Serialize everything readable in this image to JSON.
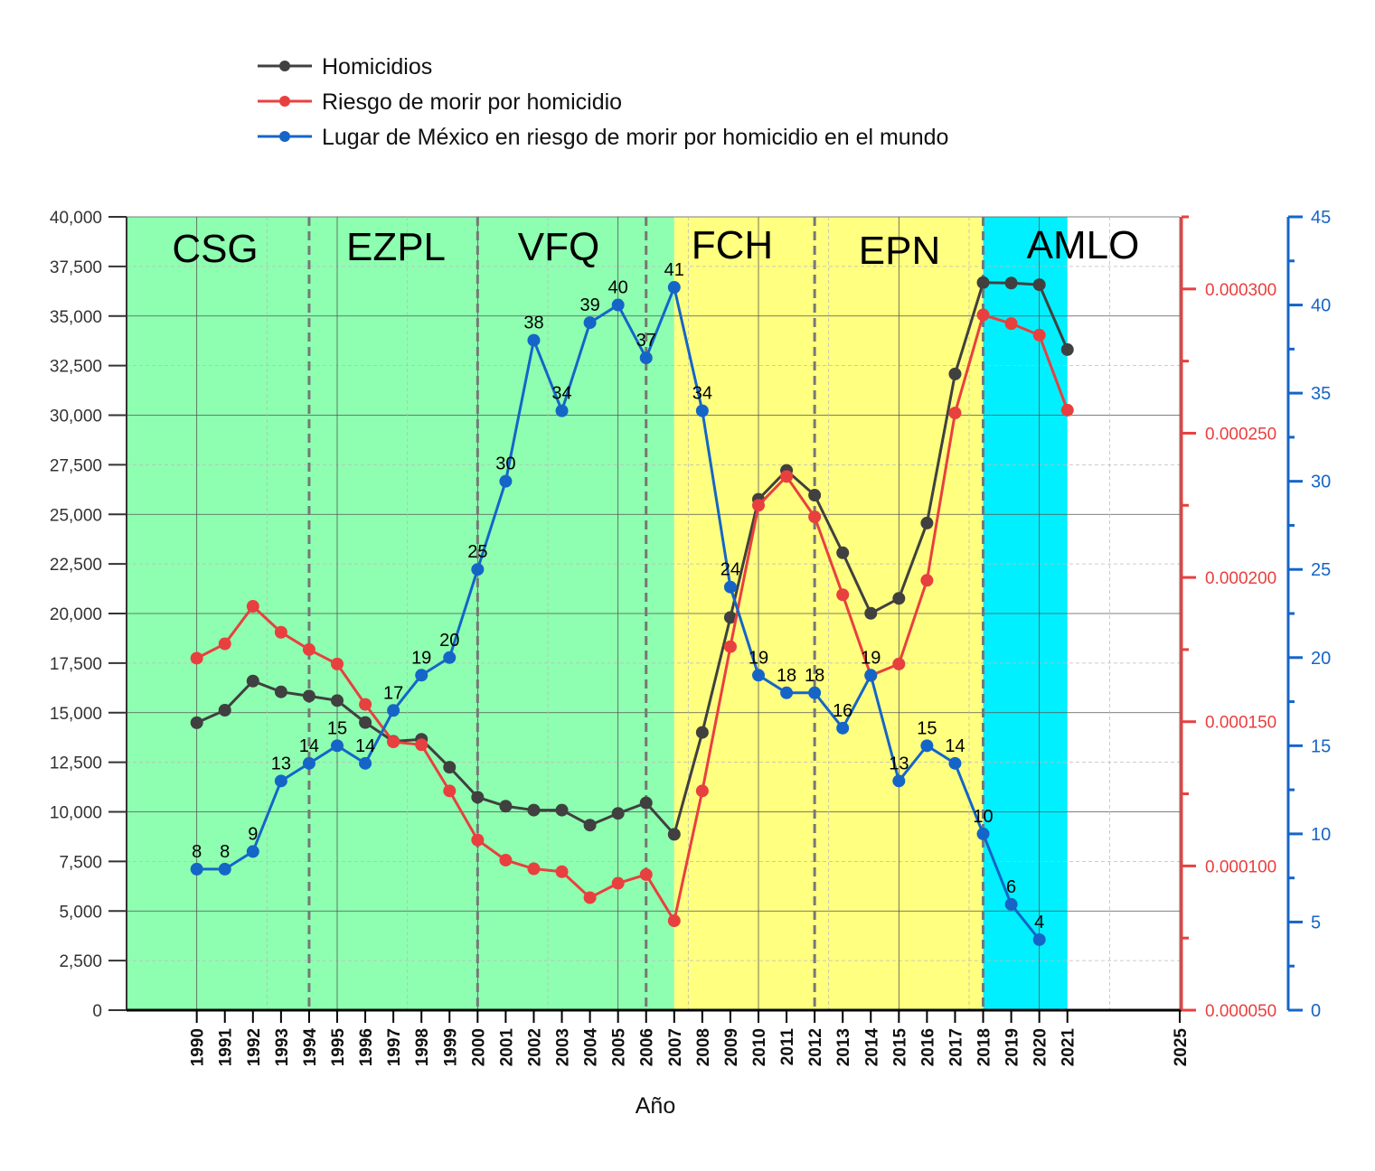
{
  "chart_data": {
    "type": "line",
    "xlabel": "Año",
    "xlim": [
      1987.5,
      2025
    ],
    "x_ticks": [
      1990,
      1991,
      1992,
      1993,
      1994,
      1995,
      1996,
      1997,
      1998,
      1999,
      2000,
      2001,
      2002,
      2003,
      2004,
      2005,
      2006,
      2007,
      2008,
      2009,
      2010,
      2011,
      2012,
      2013,
      2014,
      2015,
      2016,
      2017,
      2018,
      2019,
      2020,
      2021,
      2025
    ],
    "y_left": {
      "lim": [
        0,
        40000
      ],
      "ticks": [
        "0",
        "2,500",
        "5,000",
        "7,500",
        "10,000",
        "12,500",
        "15,000",
        "17,500",
        "20,000",
        "22,500",
        "25,000",
        "27,500",
        "30,000",
        "32,500",
        "35,000",
        "37,500",
        "40,000"
      ],
      "color": "#333333"
    },
    "y_right_red": {
      "lim": [
        5e-05,
        0.000325
      ],
      "ticks": [
        "0.000050",
        "0.000100",
        "0.000150",
        "0.000200",
        "0.000250",
        "0.000300"
      ],
      "color": "#e8403f"
    },
    "y_right_blue": {
      "lim": [
        0,
        45
      ],
      "ticks": [
        "0",
        "5",
        "10",
        "15",
        "20",
        "25",
        "30",
        "35",
        "40",
        "45"
      ],
      "color": "#1565c8"
    },
    "grid": true,
    "legend_position": "top",
    "periods": [
      {
        "label": "CSG",
        "start": 1987.5,
        "end": 1994,
        "color": "#8effb0"
      },
      {
        "label": "EZPL",
        "start": 1994,
        "end": 2000,
        "color": "#8effb0"
      },
      {
        "label": "VFQ",
        "start": 2000,
        "end": 2006,
        "color": "#8effb0"
      },
      {
        "label": "FCH",
        "start": 2006,
        "end": 2012,
        "color": "#ffff80"
      },
      {
        "label": "EPN",
        "start": 2012,
        "end": 2018,
        "color": "#ffff80"
      },
      {
        "label": "AMLO",
        "start": 2018,
        "end": 2021,
        "color": "#00f0ff"
      }
    ],
    "backgrounds": [
      {
        "start": 1987.5,
        "end": 2007,
        "color": "#8effb0"
      },
      {
        "start": 2007,
        "end": 2018,
        "color": "#ffff80"
      },
      {
        "start": 2018,
        "end": 2021,
        "color": "#00f0ff"
      }
    ],
    "dividers": [
      1994,
      2000,
      2006,
      2012,
      2018
    ],
    "series": [
      {
        "name": "Homicidios",
        "axis": "left",
        "color": "#404040",
        "x": [
          1990,
          1991,
          1992,
          1993,
          1994,
          1995,
          1996,
          1997,
          1998,
          1999,
          2000,
          2001,
          2002,
          2003,
          2004,
          2005,
          2006,
          2007,
          2008,
          2009,
          2010,
          2011,
          2012,
          2013,
          2014,
          2015,
          2016,
          2017,
          2018,
          2019,
          2020,
          2021
        ],
        "values": [
          14493,
          15125,
          16594,
          16050,
          15839,
          15612,
          14505,
          13552,
          13656,
          12249,
          10737,
          10285,
          10088,
          10087,
          9329,
          9921,
          10452,
          8867,
          14006,
          19803,
          25757,
          27213,
          25967,
          23063,
          20010,
          20762,
          24559,
          32079,
          36685,
          36661,
          36579,
          33308
        ]
      },
      {
        "name": "Riesgo de morir por homicidio",
        "axis": "right_red",
        "color": "#e8403f",
        "x": [
          1990,
          1991,
          1992,
          1993,
          1994,
          1995,
          1996,
          1997,
          1998,
          1999,
          2000,
          2001,
          2002,
          2003,
          2004,
          2005,
          2006,
          2007,
          2008,
          2009,
          2010,
          2011,
          2012,
          2013,
          2014,
          2015,
          2016,
          2017,
          2018,
          2019,
          2020,
          2021
        ],
        "values": [
          0.000172,
          0.000177,
          0.00019,
          0.000181,
          0.000175,
          0.00017,
          0.000156,
          0.000143,
          0.000142,
          0.000126,
          0.000109,
          0.000102,
          9.9e-05,
          9.8e-05,
          8.9e-05,
          9.4e-05,
          9.7e-05,
          8.1e-05,
          0.000126,
          0.000176,
          0.000225,
          0.000235,
          0.000221,
          0.000194,
          0.000166,
          0.00017,
          0.000199,
          0.000257,
          0.000291,
          0.000288,
          0.000284,
          0.000258
        ]
      },
      {
        "name": "Lugar de México en riesgo de morir por homicidio en el mundo",
        "axis": "right_blue",
        "color": "#1565c8",
        "x": [
          1990,
          1991,
          1992,
          1993,
          1994,
          1995,
          1996,
          1997,
          1998,
          1999,
          2000,
          2001,
          2002,
          2003,
          2004,
          2005,
          2006,
          2007,
          2008,
          2009,
          2010,
          2011,
          2012,
          2013,
          2014,
          2015,
          2016,
          2017,
          2018,
          2019,
          2020
        ],
        "values": [
          8,
          8,
          9,
          13,
          14,
          15,
          14,
          17,
          19,
          20,
          25,
          30,
          38,
          34,
          39,
          40,
          37,
          41,
          34,
          24,
          19,
          18,
          18,
          16,
          19,
          13,
          15,
          14,
          10,
          6,
          4
        ],
        "data_labels": [
          "8",
          "8",
          "9",
          "13",
          "14",
          "15",
          "14",
          "17",
          "19",
          "20",
          "25",
          "30",
          "38",
          "34",
          "39",
          "40",
          "37",
          "41",
          "34",
          "24",
          "19",
          "18",
          "18",
          "16",
          "19",
          "13",
          "15",
          "14",
          "10",
          "6",
          "4"
        ]
      }
    ]
  }
}
